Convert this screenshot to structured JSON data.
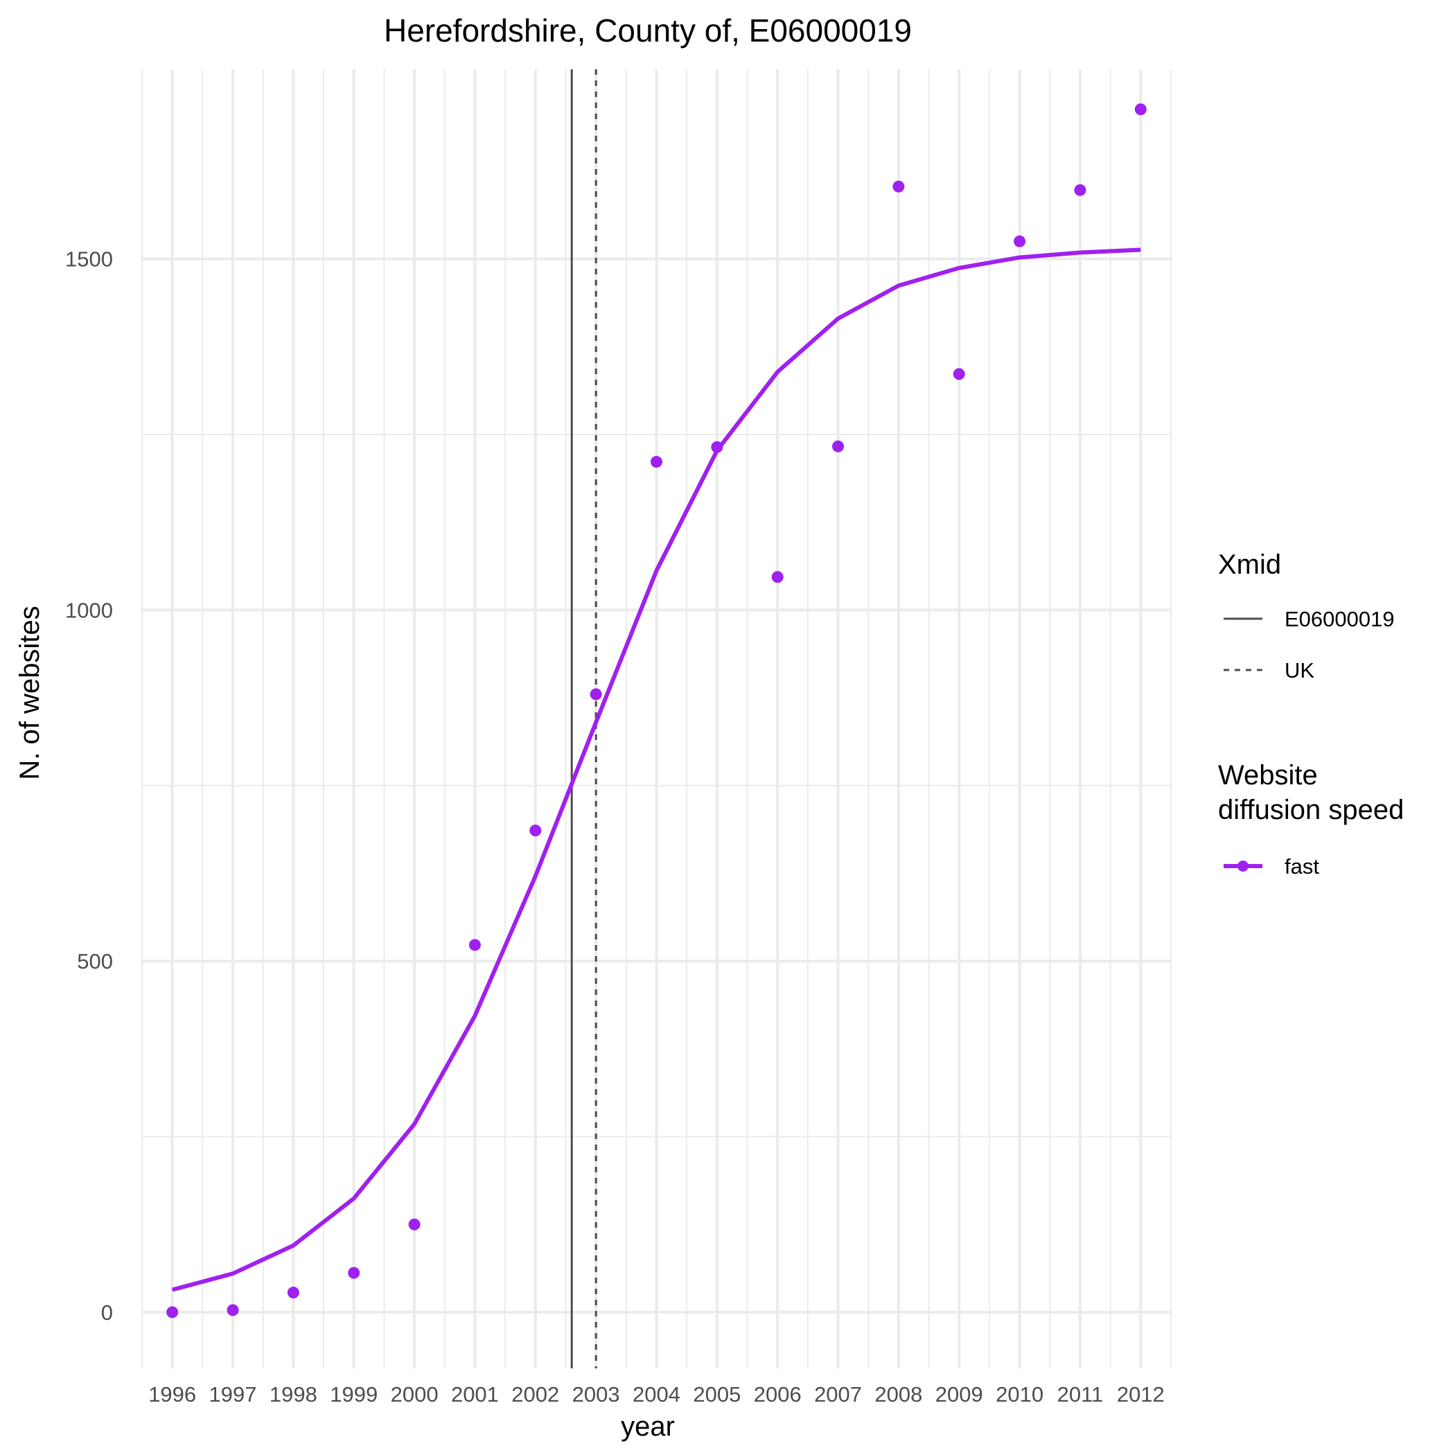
{
  "chart_data": {
    "type": "line",
    "title": "Herefordshire, County of, E06000019",
    "xlabel": "year",
    "ylabel": "N. of websites",
    "x": [
      1996,
      1997,
      1998,
      1999,
      2000,
      2001,
      2002,
      2003,
      2004,
      2005,
      2006,
      2007,
      2008,
      2009,
      2010,
      2011,
      2012
    ],
    "xlim": [
      1995.5,
      2012.5
    ],
    "ylim": [
      -80,
      1770
    ],
    "yticks": [
      0,
      500,
      1000,
      1500
    ],
    "grid": true,
    "series": [
      {
        "name": "fast",
        "color": "#a020f0",
        "points": [
          0,
          3,
          28,
          56,
          125,
          523,
          686,
          880,
          1211,
          1232,
          1047,
          1233,
          1603,
          1336,
          1525,
          1598,
          1713
        ],
        "fitted": [
          32,
          55,
          95,
          162,
          268,
          422,
          621,
          840,
          1056,
          1227,
          1339,
          1415,
          1462,
          1487,
          1502,
          1509,
          1513
        ]
      }
    ],
    "reference_lines": [
      {
        "label": "E06000019",
        "x": 2002.6,
        "style": "solid",
        "color": "#4d4d4d"
      },
      {
        "label": "UK",
        "x": 2003.0,
        "style": "dashed",
        "color": "#4d4d4d"
      }
    ],
    "legend": {
      "placement": "right",
      "xmid_title": "Xmid",
      "speed_title_line1": "Website",
      "speed_title_line2": "diffusion speed"
    }
  }
}
